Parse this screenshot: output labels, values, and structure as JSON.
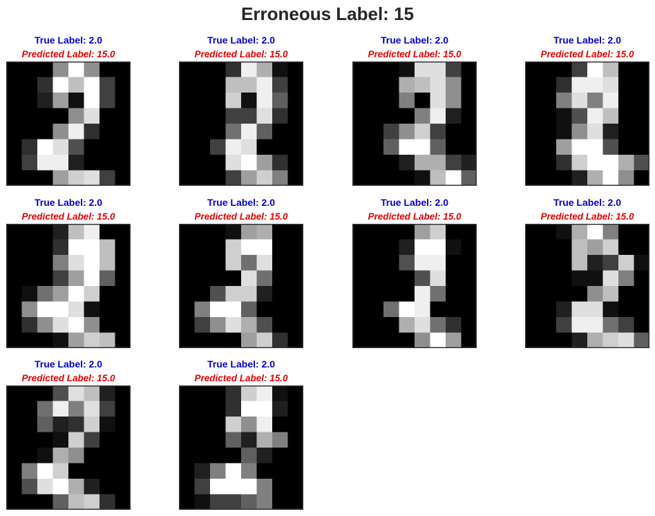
{
  "title": "Erroneous Label: 15",
  "colors": {
    "true_label": "#0000cc",
    "predicted_label": "#e60000",
    "title": "#262626",
    "frame": "#333333"
  },
  "chart_data": {
    "type": "heatmap",
    "colormap": "gray",
    "value_range": [
      0,
      16
    ],
    "grid_shape": [
      8,
      8
    ],
    "panels": [
      {
        "true_label": "True Label: 2.0",
        "predicted_label": "Predicted Label: 15.0",
        "pixels": [
          [
            0,
            0,
            0,
            9,
            16,
            9,
            0,
            0
          ],
          [
            0,
            0,
            3,
            16,
            12,
            16,
            4,
            0
          ],
          [
            0,
            0,
            2,
            10,
            1,
            16,
            4,
            0
          ],
          [
            0,
            0,
            0,
            0,
            9,
            14,
            0,
            0
          ],
          [
            0,
            0,
            0,
            9,
            15,
            3,
            0,
            0
          ],
          [
            0,
            3,
            16,
            14,
            5,
            0,
            0,
            0
          ],
          [
            0,
            4,
            15,
            15,
            2,
            0,
            0,
            0
          ],
          [
            0,
            0,
            0,
            10,
            13,
            14,
            4,
            0
          ]
        ]
      },
      {
        "true_label": "True Label: 2.0",
        "predicted_label": "Predicted Label: 15.0",
        "pixels": [
          [
            0,
            0,
            0,
            3,
            15,
            11,
            1,
            0
          ],
          [
            0,
            0,
            0,
            12,
            12,
            15,
            4,
            0
          ],
          [
            0,
            0,
            0,
            13,
            1,
            15,
            6,
            0
          ],
          [
            0,
            0,
            0,
            4,
            4,
            14,
            3,
            0
          ],
          [
            0,
            0,
            0,
            7,
            15,
            6,
            0,
            0
          ],
          [
            0,
            0,
            4,
            15,
            14,
            0,
            0,
            0
          ],
          [
            0,
            0,
            0,
            14,
            16,
            10,
            3,
            0
          ],
          [
            0,
            0,
            0,
            4,
            10,
            13,
            8,
            0
          ]
        ]
      },
      {
        "true_label": "True Label: 2.0",
        "predicted_label": "Predicted Label: 15.0",
        "pixels": [
          [
            0,
            0,
            0,
            1,
            14,
            14,
            4,
            0
          ],
          [
            0,
            0,
            0,
            11,
            12,
            14,
            9,
            0
          ],
          [
            0,
            0,
            0,
            8,
            0,
            14,
            9,
            0
          ],
          [
            0,
            0,
            0,
            0,
            8,
            15,
            2,
            0
          ],
          [
            0,
            0,
            4,
            9,
            13,
            4,
            0,
            0
          ],
          [
            0,
            0,
            6,
            16,
            16,
            6,
            0,
            0
          ],
          [
            0,
            0,
            0,
            2,
            11,
            11,
            4,
            2
          ],
          [
            0,
            0,
            0,
            0,
            1,
            12,
            16,
            6
          ]
        ]
      },
      {
        "true_label": "True Label: 2.0",
        "predicted_label": "Predicted Label: 15.0",
        "pixels": [
          [
            0,
            0,
            0,
            4,
            16,
            12,
            0,
            0
          ],
          [
            0,
            0,
            3,
            15,
            15,
            14,
            0,
            0
          ],
          [
            0,
            0,
            8,
            14,
            8,
            15,
            0,
            0
          ],
          [
            0,
            0,
            1,
            5,
            15,
            12,
            0,
            0
          ],
          [
            0,
            0,
            1,
            9,
            14,
            2,
            0,
            0
          ],
          [
            0,
            0,
            10,
            16,
            16,
            5,
            0,
            0
          ],
          [
            0,
            0,
            3,
            13,
            16,
            16,
            11,
            5
          ],
          [
            0,
            0,
            0,
            2,
            11,
            16,
            9,
            0
          ]
        ]
      },
      {
        "true_label": "True Label: 2.0",
        "predicted_label": "Predicted Label: 15.0",
        "pixels": [
          [
            0,
            0,
            0,
            2,
            12,
            15,
            0,
            0
          ],
          [
            0,
            0,
            0,
            3,
            16,
            16,
            12,
            0
          ],
          [
            0,
            0,
            0,
            8,
            14,
            16,
            12,
            0
          ],
          [
            0,
            0,
            0,
            4,
            10,
            16,
            6,
            0
          ],
          [
            0,
            1,
            7,
            10,
            16,
            13,
            0,
            0
          ],
          [
            0,
            9,
            16,
            16,
            14,
            1,
            0,
            0
          ],
          [
            0,
            3,
            9,
            14,
            16,
            9,
            0,
            0
          ],
          [
            0,
            0,
            0,
            1,
            10,
            13,
            12,
            0
          ]
        ]
      },
      {
        "true_label": "True Label: 2.0",
        "predicted_label": "Predicted Label: 15.0",
        "pixels": [
          [
            0,
            0,
            0,
            1,
            10,
            11,
            0,
            0
          ],
          [
            0,
            0,
            0,
            13,
            16,
            16,
            0,
            0
          ],
          [
            0,
            0,
            0,
            13,
            7,
            14,
            0,
            0
          ],
          [
            0,
            0,
            0,
            0,
            14,
            7,
            0,
            0
          ],
          [
            0,
            0,
            5,
            13,
            13,
            2,
            0,
            0
          ],
          [
            0,
            8,
            16,
            16,
            6,
            0,
            0,
            0
          ],
          [
            0,
            4,
            9,
            14,
            11,
            5,
            0,
            0
          ],
          [
            0,
            0,
            0,
            0,
            10,
            13,
            3,
            0
          ]
        ]
      },
      {
        "true_label": "True Label: 2.0",
        "predicted_label": "Predicted Label: 15.0",
        "pixels": [
          [
            0,
            0,
            0,
            0,
            10,
            13,
            0,
            0
          ],
          [
            0,
            0,
            0,
            2,
            16,
            16,
            1,
            0
          ],
          [
            0,
            0,
            0,
            5,
            15,
            15,
            0,
            0
          ],
          [
            0,
            0,
            0,
            0,
            5,
            14,
            0,
            0
          ],
          [
            0,
            0,
            0,
            0,
            15,
            7,
            0,
            0
          ],
          [
            0,
            0,
            7,
            16,
            15,
            0,
            0,
            0
          ],
          [
            0,
            0,
            0,
            11,
            14,
            7,
            3,
            0
          ],
          [
            0,
            0,
            0,
            0,
            9,
            16,
            10,
            0
          ]
        ]
      },
      {
        "true_label": "True Label: 2.0",
        "predicted_label": "Predicted Label: 15.0",
        "pixels": [
          [
            0,
            0,
            1,
            11,
            16,
            8,
            0,
            0
          ],
          [
            0,
            0,
            0,
            12,
            10,
            13,
            0,
            0
          ],
          [
            0,
            0,
            0,
            12,
            2,
            4,
            13,
            1
          ],
          [
            0,
            0,
            0,
            1,
            1,
            14,
            8,
            0
          ],
          [
            0,
            0,
            0,
            0,
            9,
            12,
            0,
            0
          ],
          [
            0,
            0,
            2,
            14,
            14,
            1,
            0,
            0
          ],
          [
            0,
            0,
            4,
            15,
            15,
            7,
            4,
            0
          ],
          [
            0,
            0,
            0,
            2,
            11,
            13,
            14,
            6
          ]
        ]
      },
      {
        "true_label": "True Label: 2.0",
        "predicted_label": "Predicted Label: 15.0",
        "pixels": [
          [
            0,
            0,
            0,
            5,
            14,
            12,
            2,
            0
          ],
          [
            0,
            0,
            7,
            15,
            8,
            14,
            4,
            0
          ],
          [
            0,
            0,
            6,
            2,
            3,
            13,
            1,
            0
          ],
          [
            0,
            0,
            0,
            1,
            13,
            4,
            0,
            0
          ],
          [
            0,
            0,
            1,
            11,
            9,
            0,
            0,
            0
          ],
          [
            0,
            8,
            16,
            13,
            0,
            0,
            0,
            0
          ],
          [
            0,
            5,
            14,
            16,
            11,
            2,
            0,
            0
          ],
          [
            0,
            0,
            0,
            6,
            12,
            13,
            3,
            0
          ]
        ]
      },
      {
        "true_label": "True Label: 2.0",
        "predicted_label": "Predicted Label: 15.0",
        "pixels": [
          [
            0,
            0,
            0,
            3,
            13,
            15,
            1,
            0
          ],
          [
            0,
            0,
            0,
            3,
            16,
            16,
            2,
            0
          ],
          [
            0,
            0,
            0,
            13,
            9,
            15,
            0,
            0
          ],
          [
            0,
            0,
            0,
            6,
            2,
            11,
            8,
            0
          ],
          [
            0,
            0,
            0,
            0,
            6,
            2,
            0,
            0
          ],
          [
            0,
            2,
            8,
            16,
            8,
            0,
            0,
            0
          ],
          [
            0,
            4,
            16,
            16,
            16,
            8,
            0,
            0
          ],
          [
            0,
            1,
            4,
            4,
            6,
            8,
            0,
            0
          ]
        ]
      }
    ]
  }
}
